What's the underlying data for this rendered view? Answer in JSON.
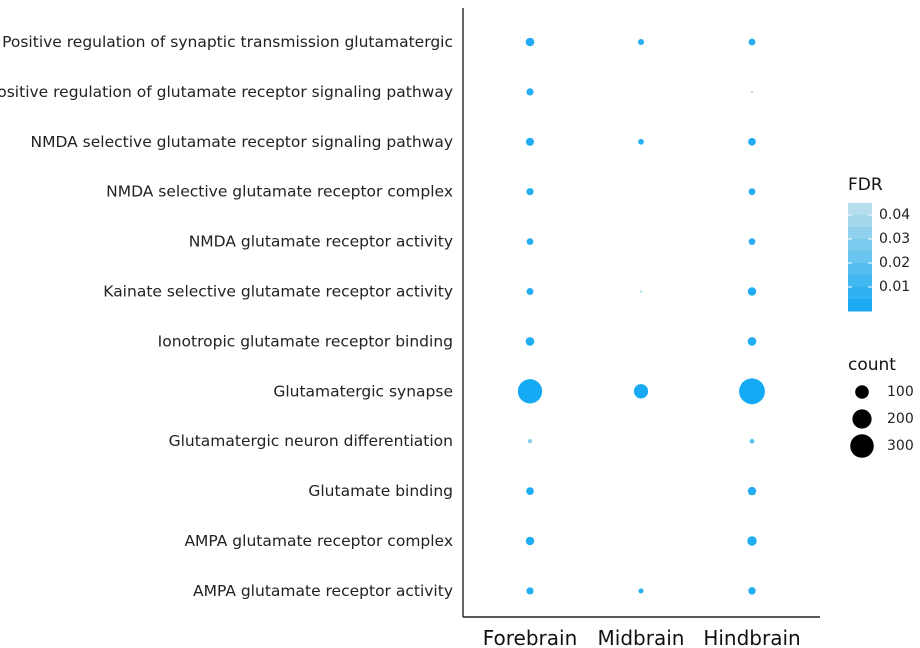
{
  "chart_data": {
    "type": "scatter",
    "title": "",
    "xlabel": "",
    "ylabel": "",
    "x_categories": [
      "Forebrain",
      "Midbrain",
      "Hindbrain"
    ],
    "y_categories": [
      "Positive regulation of synaptic transmission glutamatergic",
      "Positive regulation of glutamate receptor signaling pathway",
      "NMDA selective glutamate receptor signaling pathway",
      "NMDA selective glutamate receptor complex",
      "NMDA glutamate receptor activity",
      "Kainate selective glutamate receptor activity",
      "Ionotropic glutamate receptor binding",
      "Glutamatergic synapse",
      "Glutamatergic neuron differentiation",
      "Glutamate binding",
      "AMPA glutamate receptor complex",
      "AMPA glutamate receptor activity"
    ],
    "points": [
      {
        "x": "Forebrain",
        "y": "Positive regulation of synaptic transmission glutamatergic",
        "count": 40,
        "fdr": 0.004
      },
      {
        "x": "Midbrain",
        "y": "Positive regulation of synaptic transmission glutamatergic",
        "count": 20,
        "fdr": 0.006
      },
      {
        "x": "Hindbrain",
        "y": "Positive regulation of synaptic transmission glutamatergic",
        "count": 25,
        "fdr": 0.005
      },
      {
        "x": "Forebrain",
        "y": "Positive regulation of glutamate receptor signaling pathway",
        "count": 28,
        "fdr": 0.005
      },
      {
        "x": "Hindbrain",
        "y": "Positive regulation of glutamate receptor signaling pathway",
        "count": 3,
        "fdr": 0.04
      },
      {
        "x": "Forebrain",
        "y": "NMDA selective glutamate receptor signaling pathway",
        "count": 35,
        "fdr": 0.004
      },
      {
        "x": "Midbrain",
        "y": "NMDA selective glutamate receptor signaling pathway",
        "count": 18,
        "fdr": 0.006
      },
      {
        "x": "Hindbrain",
        "y": "NMDA selective glutamate receptor signaling pathway",
        "count": 32,
        "fdr": 0.004
      },
      {
        "x": "Forebrain",
        "y": "NMDA selective glutamate receptor complex",
        "count": 28,
        "fdr": 0.005
      },
      {
        "x": "Hindbrain",
        "y": "NMDA selective glutamate receptor complex",
        "count": 25,
        "fdr": 0.005
      },
      {
        "x": "Forebrain",
        "y": "NMDA glutamate receptor activity",
        "count": 24,
        "fdr": 0.005
      },
      {
        "x": "Hindbrain",
        "y": "NMDA glutamate receptor activity",
        "count": 24,
        "fdr": 0.005
      },
      {
        "x": "Forebrain",
        "y": "Kainate selective glutamate receptor activity",
        "count": 26,
        "fdr": 0.005
      },
      {
        "x": "Midbrain",
        "y": "Kainate selective glutamate receptor activity",
        "count": 3,
        "fdr": 0.04
      },
      {
        "x": "Hindbrain",
        "y": "Kainate selective glutamate receptor activity",
        "count": 38,
        "fdr": 0.004
      },
      {
        "x": "Forebrain",
        "y": "Ionotropic glutamate receptor binding",
        "count": 40,
        "fdr": 0.004
      },
      {
        "x": "Hindbrain",
        "y": "Ionotropic glutamate receptor binding",
        "count": 40,
        "fdr": 0.004
      },
      {
        "x": "Forebrain",
        "y": "Glutamatergic synapse",
        "count": 320,
        "fdr": 0.001
      },
      {
        "x": "Midbrain",
        "y": "Glutamatergic synapse",
        "count": 110,
        "fdr": 0.002
      },
      {
        "x": "Hindbrain",
        "y": "Glutamatergic synapse",
        "count": 360,
        "fdr": 0.001
      },
      {
        "x": "Forebrain",
        "y": "Glutamatergic neuron differentiation",
        "count": 9,
        "fdr": 0.03
      },
      {
        "x": "Hindbrain",
        "y": "Glutamatergic neuron differentiation",
        "count": 12,
        "fdr": 0.02
      },
      {
        "x": "Forebrain",
        "y": "Glutamate binding",
        "count": 32,
        "fdr": 0.004
      },
      {
        "x": "Hindbrain",
        "y": "Glutamate binding",
        "count": 38,
        "fdr": 0.004
      },
      {
        "x": "Forebrain",
        "y": "AMPA glutamate receptor complex",
        "count": 38,
        "fdr": 0.004
      },
      {
        "x": "Hindbrain",
        "y": "AMPA glutamate receptor complex",
        "count": 48,
        "fdr": 0.003
      },
      {
        "x": "Forebrain",
        "y": "AMPA glutamate receptor activity",
        "count": 28,
        "fdr": 0.005
      },
      {
        "x": "Midbrain",
        "y": "AMPA glutamate receptor activity",
        "count": 14,
        "fdr": 0.007
      },
      {
        "x": "Hindbrain",
        "y": "AMPA glutamate receptor activity",
        "count": 30,
        "fdr": 0.005
      }
    ],
    "legend": {
      "color_title": "FDR",
      "color_ticks": [
        "0.04",
        "0.03",
        "0.02",
        "0.01"
      ],
      "color_tick_values": [
        0.04,
        0.03,
        0.02,
        0.01
      ],
      "color_range": [
        0.0,
        0.045
      ],
      "color_low": "#12a8f4",
      "color_high": "#bfe0ea",
      "size_title": "count",
      "size_ticks": [
        "100",
        "200",
        "300"
      ],
      "size_tick_values": [
        100,
        200,
        300
      ],
      "size_symbol_color": "#000000",
      "placement": "right"
    },
    "grid": false
  }
}
